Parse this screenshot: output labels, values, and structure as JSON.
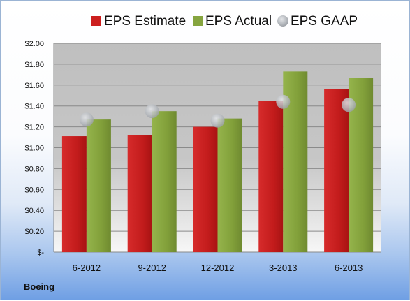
{
  "company": "Boeing",
  "chart_data": {
    "type": "bar",
    "categories": [
      "6-2012",
      "9-2012",
      "12-2012",
      "3-2013",
      "6-2013"
    ],
    "series": [
      {
        "name": "EPS Estimate",
        "kind": "bar",
        "color": "#cc1f1f",
        "values": [
          1.11,
          1.12,
          1.2,
          1.45,
          1.56
        ]
      },
      {
        "name": "EPS Actual",
        "kind": "bar",
        "color": "#86a53f",
        "values": [
          1.27,
          1.35,
          1.28,
          1.73,
          1.67
        ]
      },
      {
        "name": "EPS GAAP",
        "kind": "marker",
        "color": "#b8bcc2",
        "values": [
          1.27,
          1.35,
          1.26,
          1.44,
          1.41
        ]
      }
    ],
    "y_ticks": [
      "$2.00",
      "$1.80",
      "$1.60",
      "$1.40",
      "$1.20",
      "$1.00",
      "$0.80",
      "$0.60",
      "$0.40",
      "$0.20",
      "$-"
    ],
    "ylim": [
      0,
      2.0
    ],
    "grid": true,
    "legend_position": "top"
  }
}
